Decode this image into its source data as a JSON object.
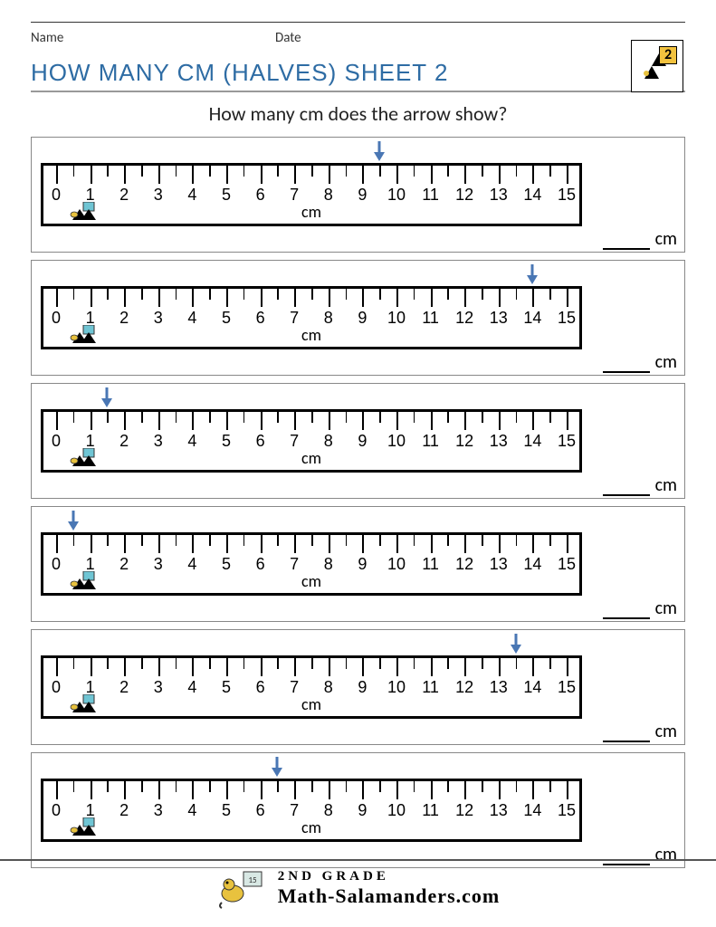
{
  "header": {
    "name_label": "Name",
    "date_label": "Date",
    "badge_number": "2"
  },
  "title": "HOW MANY CM (HALVES) SHEET 2",
  "instruction": "How many cm does the arrow show?",
  "ruler": {
    "min": 0,
    "max": 15,
    "unit_label": "cm",
    "label_color": "#000000",
    "border_color": "#000000"
  },
  "arrow_color": "#4a77b4",
  "problems": [
    {
      "arrow_value": 9.5
    },
    {
      "arrow_value": 14.0
    },
    {
      "arrow_value": 1.5
    },
    {
      "arrow_value": 0.5
    },
    {
      "arrow_value": 13.5
    },
    {
      "arrow_value": 6.5
    }
  ],
  "answer_unit": "cm",
  "footer": {
    "line1": "2ND GRADE",
    "line2": "Math-Salamanders.com"
  },
  "colors": {
    "title": "#2e6ca4",
    "page_bg": "#ffffff",
    "border": "#888888"
  }
}
